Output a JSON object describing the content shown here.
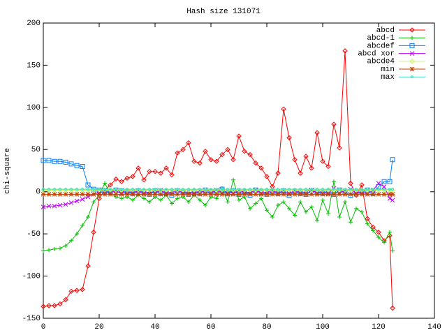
{
  "chart_data": {
    "type": "line",
    "title": "Hash size 131071",
    "y_label": "chi-square",
    "x": [
      0,
      2,
      4,
      6,
      8,
      10,
      12,
      14,
      16,
      18,
      20,
      22,
      24,
      26,
      28,
      30,
      32,
      34,
      36,
      38,
      40,
      42,
      44,
      46,
      48,
      50,
      52,
      54,
      56,
      58,
      60,
      62,
      64,
      66,
      68,
      70,
      72,
      74,
      76,
      78,
      80,
      82,
      84,
      86,
      88,
      90,
      92,
      94,
      96,
      98,
      100,
      102,
      104,
      106,
      108,
      110,
      112,
      114,
      116,
      118,
      120,
      122,
      124,
      125
    ],
    "xlim": [
      0,
      140
    ],
    "xticks": [
      0,
      20,
      40,
      60,
      80,
      100,
      120,
      140
    ],
    "ylim": [
      -150,
      200
    ],
    "yticks": [
      -150,
      -100,
      -50,
      0,
      50,
      100,
      150,
      200
    ],
    "legend": "top-right",
    "series": [
      {
        "name": "abcd",
        "color": "#ff0000",
        "marker": "diamond",
        "values": [
          -136,
          -135,
          -135,
          -133,
          -128,
          -118,
          -117,
          -116,
          -88,
          -48,
          -8,
          2,
          8,
          15,
          12,
          16,
          18,
          28,
          14,
          24,
          24,
          22,
          28,
          20,
          46,
          50,
          58,
          36,
          34,
          48,
          38,
          36,
          44,
          50,
          38,
          66,
          48,
          44,
          34,
          28,
          18,
          6,
          22,
          98,
          64,
          38,
          22,
          42,
          28,
          70,
          36,
          30,
          80,
          52,
          167,
          10,
          -4,
          8,
          -32,
          -42,
          -48,
          -58,
          -52,
          -138
        ]
      },
      {
        "name": "abcd-1",
        "color": "#00c000",
        "marker": "plus",
        "values": [
          -70,
          -69,
          -68,
          -67,
          -64,
          -58,
          -50,
          -40,
          -30,
          -12,
          -4,
          10,
          -2,
          -6,
          -8,
          -6,
          -10,
          -4,
          -8,
          -12,
          -6,
          -10,
          -4,
          -14,
          -8,
          -6,
          -12,
          -4,
          -10,
          -16,
          -6,
          -8,
          4,
          -12,
          14,
          -10,
          -6,
          -20,
          -14,
          -8,
          -22,
          -30,
          -16,
          -12,
          -20,
          -28,
          -12,
          -24,
          -18,
          -34,
          -10,
          -26,
          12,
          -30,
          -12,
          -36,
          -20,
          -24,
          -38,
          -46,
          -54,
          -60,
          -48,
          -70
        ]
      },
      {
        "name": "abcdef",
        "color": "#0080ff",
        "marker": "square",
        "values": [
          37,
          37,
          36,
          36,
          35,
          33,
          31,
          30,
          8,
          3,
          2,
          1,
          0,
          2,
          1,
          0,
          -2,
          1,
          0,
          -3,
          1,
          -2,
          0,
          -4,
          1,
          -1,
          -3,
          0,
          -2,
          2,
          0,
          -1,
          3,
          -2,
          1,
          -3,
          0,
          -4,
          2,
          -1,
          -3,
          0,
          -2,
          1,
          -4,
          0,
          -2,
          -3,
          1,
          -1,
          -2,
          0,
          -3,
          2,
          -1,
          -4,
          -1,
          0,
          2,
          -2,
          6,
          12,
          12,
          38
        ]
      },
      {
        "name": "abcd xor",
        "color": "#c000ff",
        "marker": "cross",
        "values": [
          -18,
          -17,
          -17,
          -16,
          -15,
          -13,
          -11,
          -9,
          -6,
          -3,
          -1,
          0,
          -1,
          1,
          -2,
          0,
          -1,
          1,
          -2,
          0,
          -1,
          2,
          -2,
          0,
          1,
          -1,
          0,
          -2,
          1,
          0,
          -1,
          2,
          -1,
          0,
          -2,
          1,
          0,
          -1,
          2,
          -2,
          0,
          1,
          -1,
          0,
          -2,
          1,
          -1,
          0,
          2,
          -1,
          0,
          -2,
          4,
          -1,
          1,
          3,
          -2,
          0,
          -3,
          2,
          10,
          6,
          -8,
          -10
        ]
      },
      {
        "name": "abcde4",
        "color": "#c0ff40",
        "marker": "diamond",
        "values": [
          2,
          2,
          2,
          2,
          2,
          2,
          2,
          2,
          2,
          2,
          2,
          2,
          2,
          2,
          2,
          2,
          2,
          2,
          2,
          2,
          2,
          2,
          2,
          2,
          2,
          2,
          2,
          2,
          2,
          2,
          2,
          2,
          2,
          2,
          2,
          2,
          2,
          2,
          2,
          2,
          2,
          2,
          2,
          2,
          2,
          2,
          2,
          2,
          2,
          2,
          2,
          2,
          2,
          2,
          2,
          2,
          2,
          2,
          2,
          2,
          2,
          2,
          2,
          2
        ]
      },
      {
        "name": "min",
        "color": "#c04000",
        "marker": "star",
        "values": [
          -3,
          -3,
          -3,
          -3,
          -3,
          -3,
          -3,
          -3,
          -3,
          -3,
          -3,
          -3,
          -3,
          -3,
          -3,
          -3,
          -3,
          -3,
          -3,
          -3,
          -3,
          -3,
          -3,
          -3,
          -3,
          -3,
          -3,
          -3,
          -3,
          -3,
          -3,
          -3,
          -3,
          -3,
          -3,
          -3,
          -3,
          -3,
          -3,
          -3,
          -3,
          -3,
          -3,
          -3,
          -3,
          -3,
          -3,
          -3,
          -3,
          -3,
          -3,
          -3,
          -3,
          -3,
          -3,
          -3,
          -3,
          -3,
          -3,
          -3,
          -3,
          -3,
          -3,
          -3
        ]
      },
      {
        "name": "max",
        "color": "#40e0c0",
        "marker": "dot",
        "values": [
          3,
          3,
          3,
          3,
          3,
          3,
          3,
          3,
          3,
          3,
          3,
          3,
          3,
          3,
          3,
          3,
          3,
          3,
          3,
          3,
          3,
          3,
          3,
          3,
          3,
          3,
          3,
          3,
          3,
          3,
          3,
          3,
          3,
          3,
          3,
          3,
          3,
          3,
          3,
          3,
          3,
          3,
          3,
          3,
          3,
          3,
          3,
          3,
          3,
          3,
          3,
          3,
          3,
          3,
          3,
          3,
          3,
          3,
          3,
          3,
          3,
          3,
          3,
          3
        ]
      }
    ]
  }
}
